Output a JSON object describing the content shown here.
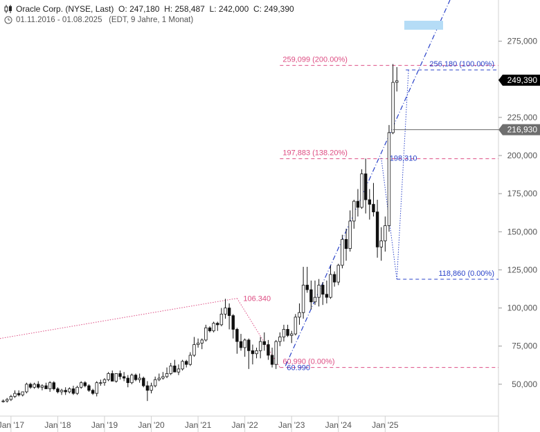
{
  "header": {
    "instrument": "Oracle Corp. (NYSE, Last)",
    "open_label": "O:",
    "open": "247,180",
    "high_label": "H:",
    "high": "258,487",
    "low_label": "L:",
    "low": "242,000",
    "close_label": "C:",
    "close": "249,390",
    "date_range": "01.11.2016 - 01.08.2025",
    "period_info": "(EDT, 9 Jahre, 1 Monat)",
    "icons": [
      "candlestick-icon",
      "clock-icon"
    ]
  },
  "chart_data": {
    "type": "candlestick",
    "title": "Oracle Corp. (NYSE, Last)",
    "interval": "monthly",
    "x_tick_labels": [
      "Jan '17",
      "Jan '18",
      "Jan '19",
      "Jan '20",
      "Jan '21",
      "Jan '22",
      "Jan '23",
      "Jan '24",
      "Jan '25"
    ],
    "y_tick_labels": [
      "275,000",
      "250,000",
      "225,000",
      "200,000",
      "175,000",
      "150,000",
      "125,000",
      "100,000",
      "75,000",
      "50,000"
    ],
    "y_ticks": [
      275,
      250,
      225,
      200,
      175,
      150,
      125,
      100,
      75,
      50
    ],
    "ylim": [
      30,
      302
    ],
    "start": "2016-11",
    "candles": [
      [
        39,
        40,
        38,
        39
      ],
      [
        39,
        41,
        38,
        40
      ],
      [
        40,
        43,
        39,
        42
      ],
      [
        42,
        46,
        41,
        44
      ],
      [
        44,
        46,
        42,
        43
      ],
      [
        43,
        45,
        42,
        45
      ],
      [
        45,
        51,
        44,
        50
      ],
      [
        50,
        51,
        47,
        48
      ],
      [
        48,
        51,
        47,
        50
      ],
      [
        50,
        52,
        47,
        48
      ],
      [
        48,
        50,
        46,
        49
      ],
      [
        49,
        51,
        47,
        47
      ],
      [
        47,
        52,
        45,
        51
      ],
      [
        51,
        52,
        46,
        47
      ],
      [
        47,
        48,
        44,
        45
      ],
      [
        45,
        47,
        43,
        46
      ],
      [
        46,
        48,
        43,
        45
      ],
      [
        45,
        48,
        44,
        47
      ],
      [
        47,
        49,
        43,
        44
      ],
      [
        44,
        49,
        43,
        48
      ],
      [
        48,
        52,
        47,
        51
      ],
      [
        51,
        52,
        48,
        49
      ],
      [
        49,
        50,
        45,
        46
      ],
      [
        46,
        47,
        43,
        44
      ],
      [
        44,
        52,
        42,
        51
      ],
      [
        51,
        53,
        49,
        51
      ],
      [
        51,
        54,
        49,
        53
      ],
      [
        53,
        58,
        52,
        57
      ],
      [
        57,
        59,
        52,
        52
      ],
      [
        52,
        57,
        51,
        57
      ],
      [
        57,
        59,
        53,
        55
      ],
      [
        55,
        58,
        52,
        54
      ],
      [
        54,
        56,
        48,
        51
      ],
      [
        51,
        57,
        50,
        56
      ],
      [
        56,
        57,
        52,
        53
      ],
      [
        53,
        57,
        51,
        54
      ],
      [
        54,
        55,
        48,
        49
      ],
      [
        49,
        52,
        39,
        46
      ],
      [
        46,
        51,
        44,
        49
      ],
      [
        49,
        55,
        48,
        53
      ],
      [
        53,
        57,
        52,
        54
      ],
      [
        54,
        58,
        53,
        55
      ],
      [
        55,
        61,
        54,
        57
      ],
      [
        57,
        64,
        56,
        62
      ],
      [
        62,
        66,
        58,
        58
      ],
      [
        58,
        63,
        56,
        60
      ],
      [
        60,
        66,
        59,
        65
      ],
      [
        65,
        66,
        61,
        63
      ],
      [
        63,
        71,
        62,
        69
      ],
      [
        69,
        81,
        68,
        76
      ],
      [
        76,
        80,
        74,
        77
      ],
      [
        77,
        80,
        73,
        79
      ],
      [
        79,
        89,
        78,
        87
      ],
      [
        87,
        88,
        84,
        85
      ],
      [
        85,
        91,
        84,
        90
      ],
      [
        90,
        91,
        85,
        89
      ],
      [
        89,
        100,
        88,
        96
      ],
      [
        96,
        106,
        93,
        100
      ],
      [
        100,
        103,
        86,
        95
      ],
      [
        95,
        96,
        80,
        86
      ],
      [
        86,
        87,
        70,
        78
      ],
      [
        78,
        83,
        72,
        74
      ],
      [
        74,
        80,
        68,
        79
      ],
      [
        79,
        80,
        60,
        72
      ],
      [
        72,
        76,
        63,
        70
      ],
      [
        70,
        74,
        67,
        72
      ],
      [
        72,
        81,
        67,
        78
      ],
      [
        78,
        84,
        72,
        76
      ],
      [
        76,
        79,
        66,
        69
      ],
      [
        69,
        74,
        61,
        63
      ],
      [
        63,
        79,
        60,
        78
      ],
      [
        78,
        84,
        75,
        81
      ],
      [
        81,
        89,
        78,
        86
      ],
      [
        86,
        89,
        81,
        82
      ],
      [
        82,
        85,
        77,
        83
      ],
      [
        83,
        96,
        82,
        94
      ],
      [
        94,
        103,
        89,
        97
      ],
      [
        97,
        127,
        93,
        115
      ],
      [
        115,
        127,
        110,
        112
      ],
      [
        112,
        118,
        99,
        104
      ],
      [
        104,
        118,
        102,
        107
      ],
      [
        107,
        119,
        101,
        115
      ],
      [
        115,
        117,
        102,
        109
      ],
      [
        109,
        118,
        103,
        107
      ],
      [
        107,
        128,
        106,
        122
      ],
      [
        122,
        124,
        114,
        117
      ],
      [
        117,
        129,
        115,
        128
      ],
      [
        128,
        148,
        126,
        145
      ],
      [
        145,
        152,
        131,
        139
      ],
      [
        139,
        164,
        137,
        157
      ],
      [
        157,
        171,
        152,
        170
      ],
      [
        170,
        178,
        160,
        166
      ],
      [
        166,
        191,
        165,
        188
      ],
      [
        188,
        198,
        162,
        171
      ],
      [
        171,
        178,
        158,
        168
      ],
      [
        168,
        182,
        160,
        163
      ],
      [
        163,
        171,
        133,
        140
      ],
      [
        140,
        153,
        131,
        144
      ],
      [
        144,
        160,
        137,
        154
      ],
      [
        154,
        220,
        150,
        215
      ],
      [
        215,
        260,
        214,
        248
      ],
      [
        248,
        258,
        242,
        249
      ]
    ],
    "last_price": 249.39,
    "last_price_label": "249,390",
    "marker_price": 216.93,
    "marker_price_label": "216,930",
    "annotations": [
      {
        "text": "106.340",
        "price": 106.34
      },
      {
        "text": "60.990",
        "price": 60.99
      }
    ],
    "fib_levels_pink": [
      {
        "label": "259,099 (200.00%)",
        "price": 259.099
      },
      {
        "label": "197,883 (138.20%)",
        "price": 197.883
      },
      {
        "label": "60,990 (0.00%)",
        "price": 60.99
      }
    ],
    "fib_levels_blue": [
      {
        "label": "256,180 (100.00%)",
        "price": 256.18
      },
      {
        "label": "198,310",
        "price": 198.31
      },
      {
        "label": "118,860 (0.00%)",
        "price": 118.86
      }
    ],
    "colors": {
      "pink": "#dd4c82",
      "blue": "#2740c8",
      "candle": "#111111",
      "tag_black": "#000000",
      "tag_grey": "#6e6e6e",
      "box": "#b5dcf6"
    }
  }
}
